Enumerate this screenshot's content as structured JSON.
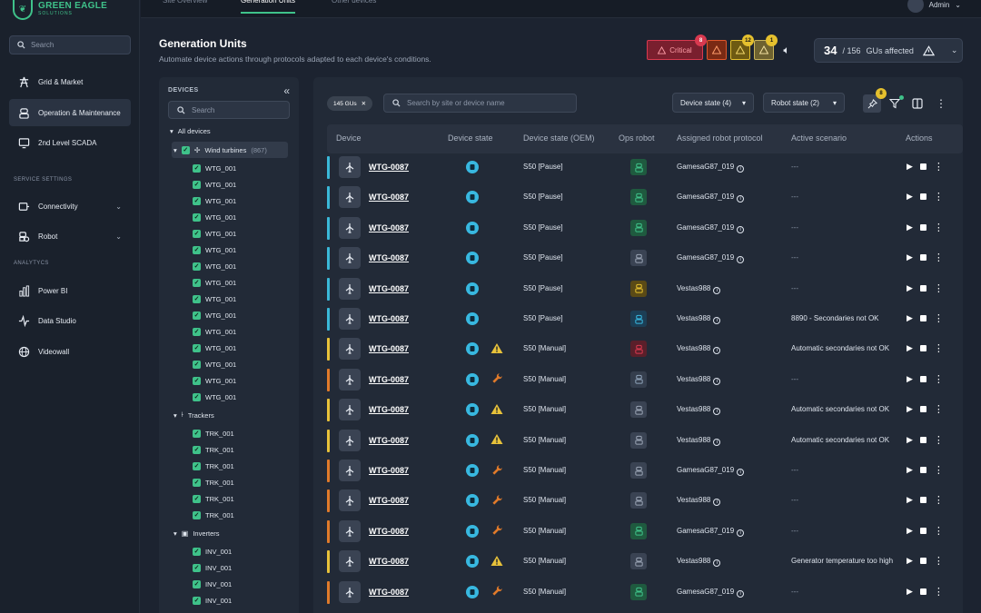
{
  "app": {
    "brand": "GREEN EAGLE",
    "brand_sub": "SOLUTIONS"
  },
  "sidebar": {
    "search_placeholder": "Search",
    "items": [
      {
        "label": "Grid & Market",
        "icon": "grid-tower-icon"
      },
      {
        "label": "Operation & Maintenance",
        "icon": "robot-icon"
      },
      {
        "label": "2nd Level SCADA",
        "icon": "monitor-icon"
      }
    ],
    "service_title": "SERVICE SETTINGS",
    "service_items": [
      {
        "label": "Connectivity",
        "icon": "connectivity-icon"
      },
      {
        "label": "Robot",
        "icon": "robot-settings-icon"
      }
    ],
    "analytics_title": "ANALYTYCS",
    "analytics_items": [
      {
        "label": "Power BI",
        "icon": "bar-chart-icon"
      },
      {
        "label": "Data Studio",
        "icon": "pulse-icon"
      },
      {
        "label": "Videowall",
        "icon": "globe-icon"
      }
    ]
  },
  "topbar": {
    "tabs": [
      "Site Overview",
      "Generation Units",
      "Other devices"
    ],
    "active_tab": "Generation Units",
    "user": "Admin"
  },
  "header": {
    "title": "Generation Units",
    "subtitle": "Automate device actions through protocols adapted to each device's conditions.",
    "alerts": [
      {
        "label": "Critical",
        "count": "8",
        "color": "#d8394f"
      },
      {
        "label": "",
        "count": "",
        "color": "#e0562b"
      },
      {
        "label": "",
        "count": "12",
        "color": "#e5c02e"
      },
      {
        "label": "",
        "count": "1",
        "color": "#e5c02e"
      }
    ],
    "affected_count": "34",
    "affected_total": "/ 156",
    "affected_label": "GUs affected"
  },
  "tree": {
    "title": "DEVICES",
    "search_placeholder": "Search",
    "all_label": "All devices",
    "groups": [
      {
        "label": "Wind turbines",
        "count": "(867)",
        "items": [
          "WTG_001",
          "WTG_001",
          "WTG_001",
          "WTG_001",
          "WTG_001",
          "WTG_001",
          "WTG_001",
          "WTG_001",
          "WTG_001",
          "WTG_001",
          "WTG_001",
          "WTG_001",
          "WTG_001",
          "WTG_001",
          "WTG_001"
        ]
      },
      {
        "label": "Trackers",
        "count": "",
        "items": [
          "TRK_001",
          "TRK_001",
          "TRK_001",
          "TRK_001",
          "TRK_001",
          "TRK_001"
        ]
      },
      {
        "label": "Inverters",
        "count": "",
        "items": [
          "INV_001",
          "INV_001",
          "INV_001",
          "INV_001"
        ]
      }
    ]
  },
  "toolbar": {
    "chip_label": "145 GUs",
    "search_placeholder": "Search by site or device name",
    "device_state": "Device state (4)",
    "robot_state": "Robot state (2)",
    "pin_count": "8"
  },
  "table": {
    "columns": [
      "Device",
      "Device state",
      "Device state (OEM)",
      "Ops robot",
      "Assigned robot protocol",
      "Active scenario",
      "Actions"
    ],
    "rows": [
      {
        "device": "WTG-0087",
        "bar": "#3ab8d8",
        "warn": "",
        "oem": "S50 [Pause]",
        "robot": "green",
        "protocol": "GamesaG87_019",
        "scenario": "---"
      },
      {
        "device": "WTG-0087",
        "bar": "#3ab8d8",
        "warn": "",
        "oem": "S50 [Pause]",
        "robot": "green",
        "protocol": "GamesaG87_019",
        "scenario": "---"
      },
      {
        "device": "WTG-0087",
        "bar": "#3ab8d8",
        "warn": "",
        "oem": "S50 [Pause]",
        "robot": "green",
        "protocol": "GamesaG87_019",
        "scenario": "---"
      },
      {
        "device": "WTG-0087",
        "bar": "#3ab8d8",
        "warn": "",
        "oem": "S50 [Pause]",
        "robot": "grey",
        "protocol": "GamesaG87_019",
        "scenario": "---"
      },
      {
        "device": "WTG-0087",
        "bar": "#3ab8d8",
        "warn": "",
        "oem": "S50 [Pause]",
        "robot": "yellow",
        "protocol": "Vestas988",
        "scenario": "---"
      },
      {
        "device": "WTG-0087",
        "bar": "#3ab8d8",
        "warn": "",
        "oem": "S50 [Pause]",
        "robot": "blue",
        "protocol": "Vestas988",
        "scenario": "8890 - Secondaries not OK"
      },
      {
        "device": "WTG-0087",
        "bar": "#e8c23a",
        "warn": "warning",
        "oem": "S50 [Manual]",
        "robot": "red",
        "protocol": "Vestas988",
        "scenario": "Automatic secondaries not OK"
      },
      {
        "device": "WTG-0087",
        "bar": "#e07a2a",
        "warn": "wrench",
        "oem": "S50 [Manual]",
        "robot": "greyblue",
        "protocol": "Vestas988",
        "scenario": "---"
      },
      {
        "device": "WTG-0087",
        "bar": "#e8c23a",
        "warn": "warning",
        "oem": "S50 [Manual]",
        "robot": "grey",
        "protocol": "Vestas988",
        "scenario": "Automatic secondaries not OK"
      },
      {
        "device": "WTG-0087",
        "bar": "#e8c23a",
        "warn": "warning",
        "oem": "S50 [Manual]",
        "robot": "grey",
        "protocol": "Vestas988",
        "scenario": "Automatic secondaries not OK"
      },
      {
        "device": "WTG-0087",
        "bar": "#e07a2a",
        "warn": "wrench",
        "oem": "S50 [Manual]",
        "robot": "grey",
        "protocol": "GamesaG87_019",
        "scenario": "---"
      },
      {
        "device": "WTG-0087",
        "bar": "#e07a2a",
        "warn": "wrench",
        "oem": "S50 [Manual]",
        "robot": "grey",
        "protocol": "Vestas988",
        "scenario": "---"
      },
      {
        "device": "WTG-0087",
        "bar": "#e07a2a",
        "warn": "wrench",
        "oem": "S50 [Manual]",
        "robot": "green",
        "protocol": "GamesaG87_019",
        "scenario": "---"
      },
      {
        "device": "WTG-0087",
        "bar": "#e8c23a",
        "warn": "warning",
        "oem": "S50 [Manual]",
        "robot": "grey",
        "protocol": "Vestas988",
        "scenario": "Generator temperature too high"
      },
      {
        "device": "WTG-0087",
        "bar": "#e07a2a",
        "warn": "wrench",
        "oem": "S50 [Manual]",
        "robot": "green",
        "protocol": "GamesaG87_019",
        "scenario": "---"
      }
    ]
  }
}
